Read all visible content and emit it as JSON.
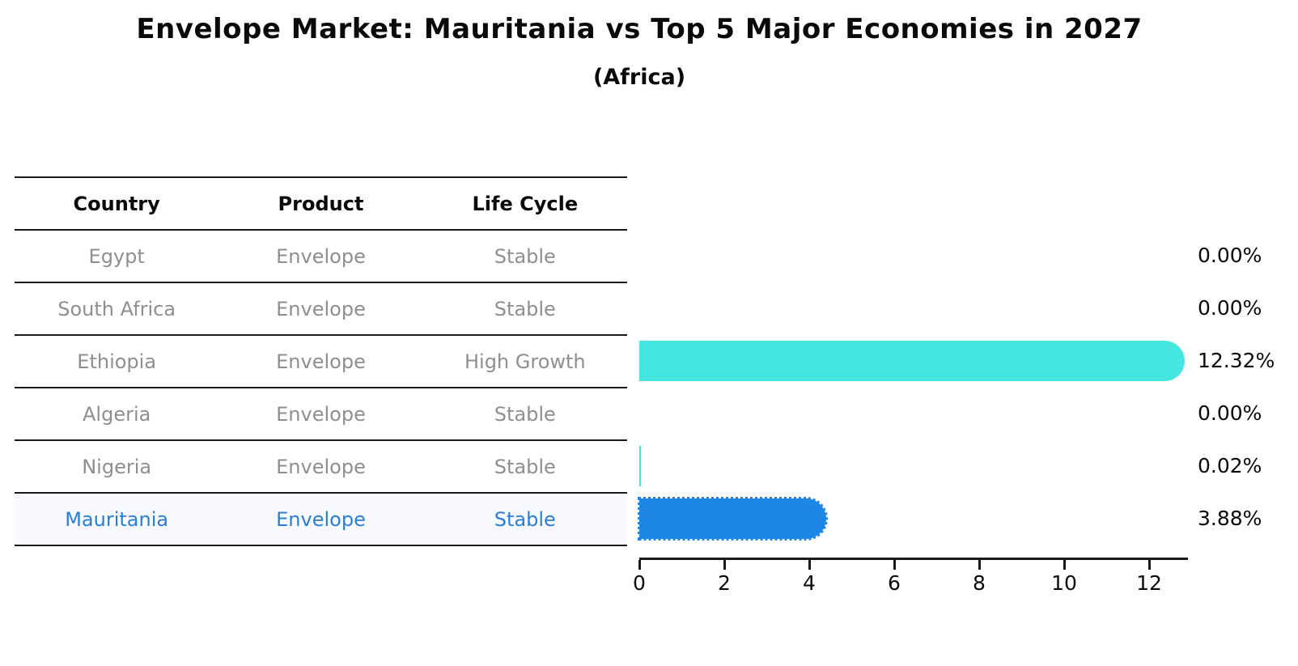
{
  "title": "Envelope Market: Mauritania vs Top 5 Major Economies in 2027",
  "subtitle": "(Africa)",
  "table": {
    "headers": [
      "Country",
      "Product",
      "Life Cycle"
    ],
    "rows": [
      {
        "country": "Egypt",
        "product": "Envelope",
        "life_cycle": "Stable",
        "highlighted": false
      },
      {
        "country": "South Africa",
        "product": "Envelope",
        "life_cycle": "Stable",
        "highlighted": false
      },
      {
        "country": "Ethiopia",
        "product": "Envelope",
        "life_cycle": "High Growth",
        "highlighted": false
      },
      {
        "country": "Algeria",
        "product": "Envelope",
        "life_cycle": "Stable",
        "highlighted": false
      },
      {
        "country": "Nigeria",
        "product": "Envelope",
        "life_cycle": "Stable",
        "highlighted": false
      },
      {
        "country": "Mauritania",
        "product": "Envelope",
        "life_cycle": "Stable",
        "highlighted": true
      }
    ]
  },
  "chart_data": {
    "type": "bar",
    "orientation": "horizontal",
    "title": "Envelope Market: Mauritania vs Top 5 Major Economies in 2027",
    "subtitle": "(Africa)",
    "categories": [
      "Egypt",
      "South Africa",
      "Ethiopia",
      "Algeria",
      "Nigeria",
      "Mauritania"
    ],
    "values": [
      0.0,
      0.0,
      12.32,
      0.0,
      0.02,
      3.88
    ],
    "value_labels": [
      "0.00%",
      "0.00%",
      "12.32%",
      "0.00%",
      "0.02%",
      "3.88%"
    ],
    "xticks": [
      "0",
      "2",
      "4",
      "6",
      "8",
      "10",
      "12"
    ],
    "xlim": [
      0,
      12.9
    ],
    "xlabel": "",
    "ylabel": "",
    "grid": false,
    "legend": false,
    "highlight_index": 5,
    "highlight_edge": "dotted"
  },
  "colors": {
    "bar_default": "#45E6E0",
    "bar_highlight": "#1E87E5",
    "highlight_text": "#2A7FD4",
    "row_text": "#8f8f8f",
    "axis": "#1a1a1a",
    "title_text": "#0a0a0a"
  }
}
